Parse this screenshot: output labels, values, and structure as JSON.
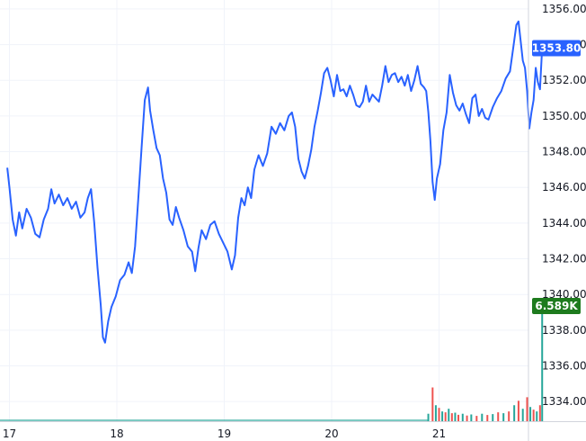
{
  "chart_data": {
    "type": "line",
    "x_axis": {
      "ticks": [
        {
          "label": "17",
          "day": 0
        },
        {
          "label": "18",
          "day": 1
        },
        {
          "label": "19",
          "day": 2
        },
        {
          "label": "20",
          "day": 3
        },
        {
          "label": "21",
          "day": 4
        }
      ]
    },
    "y_axis": {
      "position": "right",
      "range": [
        1332.9,
        1356.5
      ],
      "ticks": [
        "1356.00",
        "1354.00",
        "1352.00",
        "1350.00",
        "1348.00",
        "1346.00",
        "1344.00",
        "1342.00",
        "1340.00",
        "1338.00",
        "1336.00",
        "1334.00"
      ]
    },
    "grid": true,
    "series": [
      {
        "kind": "price",
        "color": "#2962ff",
        "points": [
          [
            -0.02,
            1347.1
          ],
          [
            0.0,
            1346.0
          ],
          [
            0.03,
            1344.2
          ],
          [
            0.06,
            1343.3
          ],
          [
            0.09,
            1344.6
          ],
          [
            0.12,
            1343.7
          ],
          [
            0.16,
            1344.8
          ],
          [
            0.2,
            1344.3
          ],
          [
            0.24,
            1343.4
          ],
          [
            0.28,
            1343.2
          ],
          [
            0.32,
            1344.2
          ],
          [
            0.36,
            1344.8
          ],
          [
            0.39,
            1345.9
          ],
          [
            0.42,
            1345.1
          ],
          [
            0.46,
            1345.6
          ],
          [
            0.5,
            1345.0
          ],
          [
            0.54,
            1345.4
          ],
          [
            0.58,
            1344.8
          ],
          [
            0.62,
            1345.2
          ],
          [
            0.66,
            1344.3
          ],
          [
            0.7,
            1344.6
          ],
          [
            0.73,
            1345.4
          ],
          [
            0.76,
            1345.9
          ],
          [
            0.79,
            1344.0
          ],
          [
            0.82,
            1341.5
          ],
          [
            0.85,
            1339.4
          ],
          [
            0.87,
            1337.6
          ],
          [
            0.89,
            1337.3
          ],
          [
            0.92,
            1338.5
          ],
          [
            0.95,
            1339.3
          ],
          [
            0.99,
            1339.9
          ],
          [
            1.03,
            1340.8
          ],
          [
            1.07,
            1341.1
          ],
          [
            1.11,
            1341.8
          ],
          [
            1.14,
            1341.2
          ],
          [
            1.17,
            1342.7
          ],
          [
            1.2,
            1345.4
          ],
          [
            1.23,
            1348.2
          ],
          [
            1.26,
            1350.9
          ],
          [
            1.29,
            1351.6
          ],
          [
            1.31,
            1350.3
          ],
          [
            1.34,
            1349.2
          ],
          [
            1.37,
            1348.2
          ],
          [
            1.4,
            1347.8
          ],
          [
            1.43,
            1346.5
          ],
          [
            1.46,
            1345.7
          ],
          [
            1.49,
            1344.2
          ],
          [
            1.52,
            1343.9
          ],
          [
            1.55,
            1344.9
          ],
          [
            1.58,
            1344.3
          ],
          [
            1.62,
            1343.6
          ],
          [
            1.66,
            1342.7
          ],
          [
            1.7,
            1342.4
          ],
          [
            1.73,
            1341.3
          ],
          [
            1.76,
            1342.6
          ],
          [
            1.79,
            1343.6
          ],
          [
            1.83,
            1343.1
          ],
          [
            1.87,
            1343.9
          ],
          [
            1.91,
            1344.1
          ],
          [
            1.95,
            1343.4
          ],
          [
            1.99,
            1342.9
          ],
          [
            2.03,
            1342.4
          ],
          [
            2.07,
            1341.4
          ],
          [
            2.1,
            1342.2
          ],
          [
            2.13,
            1344.3
          ],
          [
            2.16,
            1345.4
          ],
          [
            2.19,
            1345.0
          ],
          [
            2.22,
            1346.0
          ],
          [
            2.25,
            1345.4
          ],
          [
            2.28,
            1347.0
          ],
          [
            2.32,
            1347.8
          ],
          [
            2.36,
            1347.2
          ],
          [
            2.4,
            1347.9
          ],
          [
            2.44,
            1349.4
          ],
          [
            2.48,
            1349.0
          ],
          [
            2.52,
            1349.6
          ],
          [
            2.56,
            1349.2
          ],
          [
            2.6,
            1350.0
          ],
          [
            2.63,
            1350.2
          ],
          [
            2.66,
            1349.4
          ],
          [
            2.69,
            1347.6
          ],
          [
            2.72,
            1346.9
          ],
          [
            2.75,
            1346.5
          ],
          [
            2.78,
            1347.2
          ],
          [
            2.81,
            1348.1
          ],
          [
            2.84,
            1349.4
          ],
          [
            2.87,
            1350.3
          ],
          [
            2.9,
            1351.3
          ],
          [
            2.93,
            1352.4
          ],
          [
            2.96,
            1352.7
          ],
          [
            2.99,
            1352.0
          ],
          [
            3.02,
            1351.1
          ],
          [
            3.05,
            1352.3
          ],
          [
            3.08,
            1351.4
          ],
          [
            3.11,
            1351.5
          ],
          [
            3.14,
            1351.1
          ],
          [
            3.17,
            1351.7
          ],
          [
            3.2,
            1351.2
          ],
          [
            3.23,
            1350.6
          ],
          [
            3.26,
            1350.5
          ],
          [
            3.29,
            1350.8
          ],
          [
            3.32,
            1351.7
          ],
          [
            3.35,
            1350.8
          ],
          [
            3.38,
            1351.2
          ],
          [
            3.41,
            1351.0
          ],
          [
            3.44,
            1350.8
          ],
          [
            3.47,
            1351.7
          ],
          [
            3.5,
            1352.8
          ],
          [
            3.53,
            1351.9
          ],
          [
            3.56,
            1352.3
          ],
          [
            3.59,
            1352.4
          ],
          [
            3.62,
            1351.9
          ],
          [
            3.65,
            1352.2
          ],
          [
            3.68,
            1351.7
          ],
          [
            3.71,
            1352.3
          ],
          [
            3.74,
            1351.4
          ],
          [
            3.77,
            1352.0
          ],
          [
            3.8,
            1352.8
          ],
          [
            3.83,
            1351.8
          ],
          [
            3.86,
            1351.6
          ],
          [
            3.88,
            1351.4
          ],
          [
            3.9,
            1350.2
          ],
          [
            3.92,
            1348.6
          ],
          [
            3.94,
            1346.3
          ],
          [
            3.96,
            1345.3
          ],
          [
            3.98,
            1346.5
          ],
          [
            4.01,
            1347.3
          ],
          [
            4.04,
            1349.2
          ],
          [
            4.07,
            1350.2
          ],
          [
            4.1,
            1352.3
          ],
          [
            4.13,
            1351.3
          ],
          [
            4.16,
            1350.6
          ],
          [
            4.19,
            1350.3
          ],
          [
            4.22,
            1350.7
          ],
          [
            4.25,
            1350.1
          ],
          [
            4.28,
            1349.6
          ],
          [
            4.31,
            1351.0
          ],
          [
            4.34,
            1351.2
          ],
          [
            4.37,
            1350.0
          ],
          [
            4.4,
            1350.4
          ],
          [
            4.43,
            1349.9
          ],
          [
            4.46,
            1349.8
          ],
          [
            4.5,
            1350.5
          ],
          [
            4.54,
            1351.0
          ],
          [
            4.58,
            1351.4
          ],
          [
            4.62,
            1352.1
          ],
          [
            4.66,
            1352.5
          ],
          [
            4.69,
            1353.8
          ],
          [
            4.72,
            1355.1
          ],
          [
            4.74,
            1355.3
          ],
          [
            4.76,
            1354.2
          ],
          [
            4.78,
            1353.1
          ],
          [
            4.8,
            1352.7
          ],
          [
            4.82,
            1351.4
          ],
          [
            4.84,
            1349.3
          ],
          [
            4.86,
            1350.2
          ],
          [
            4.88,
            1350.9
          ],
          [
            4.9,
            1352.7
          ],
          [
            4.92,
            1351.9
          ],
          [
            4.94,
            1351.5
          ],
          [
            4.96,
            1353.8
          ]
        ]
      },
      {
        "kind": "volume",
        "up_color": "#26a69a",
        "down_color": "#ef5350",
        "scale_max": 6.589,
        "bars": [
          [
            3.9,
            0.42
          ],
          [
            3.94,
            1.9
          ],
          [
            3.97,
            0.9
          ],
          [
            4.0,
            0.75
          ],
          [
            4.03,
            0.55
          ],
          [
            4.06,
            0.5
          ],
          [
            4.09,
            0.7
          ],
          [
            4.12,
            0.45
          ],
          [
            4.15,
            0.48
          ],
          [
            4.18,
            0.36
          ],
          [
            4.22,
            0.42
          ],
          [
            4.26,
            0.32
          ],
          [
            4.3,
            0.38
          ],
          [
            4.35,
            0.3
          ],
          [
            4.4,
            0.42
          ],
          [
            4.45,
            0.35
          ],
          [
            4.5,
            0.4
          ],
          [
            4.55,
            0.5
          ],
          [
            4.6,
            0.45
          ],
          [
            4.65,
            0.55
          ],
          [
            4.7,
            0.9
          ],
          [
            4.74,
            1.15
          ],
          [
            4.78,
            0.7
          ],
          [
            4.82,
            1.35
          ],
          [
            4.85,
            0.8
          ],
          [
            4.88,
            0.65
          ],
          [
            4.91,
            0.55
          ],
          [
            4.94,
            0.9
          ],
          [
            4.96,
            6.589
          ]
        ]
      }
    ],
    "price_label": "1353.80",
    "price_value": 1353.8,
    "volume_label": "6.589K",
    "colors": {
      "line": "#2962ff",
      "price_badge": "#2962ff",
      "volume_badge": "#1e7b1e",
      "grid": "#f0f3fa",
      "text": "#131722"
    }
  }
}
